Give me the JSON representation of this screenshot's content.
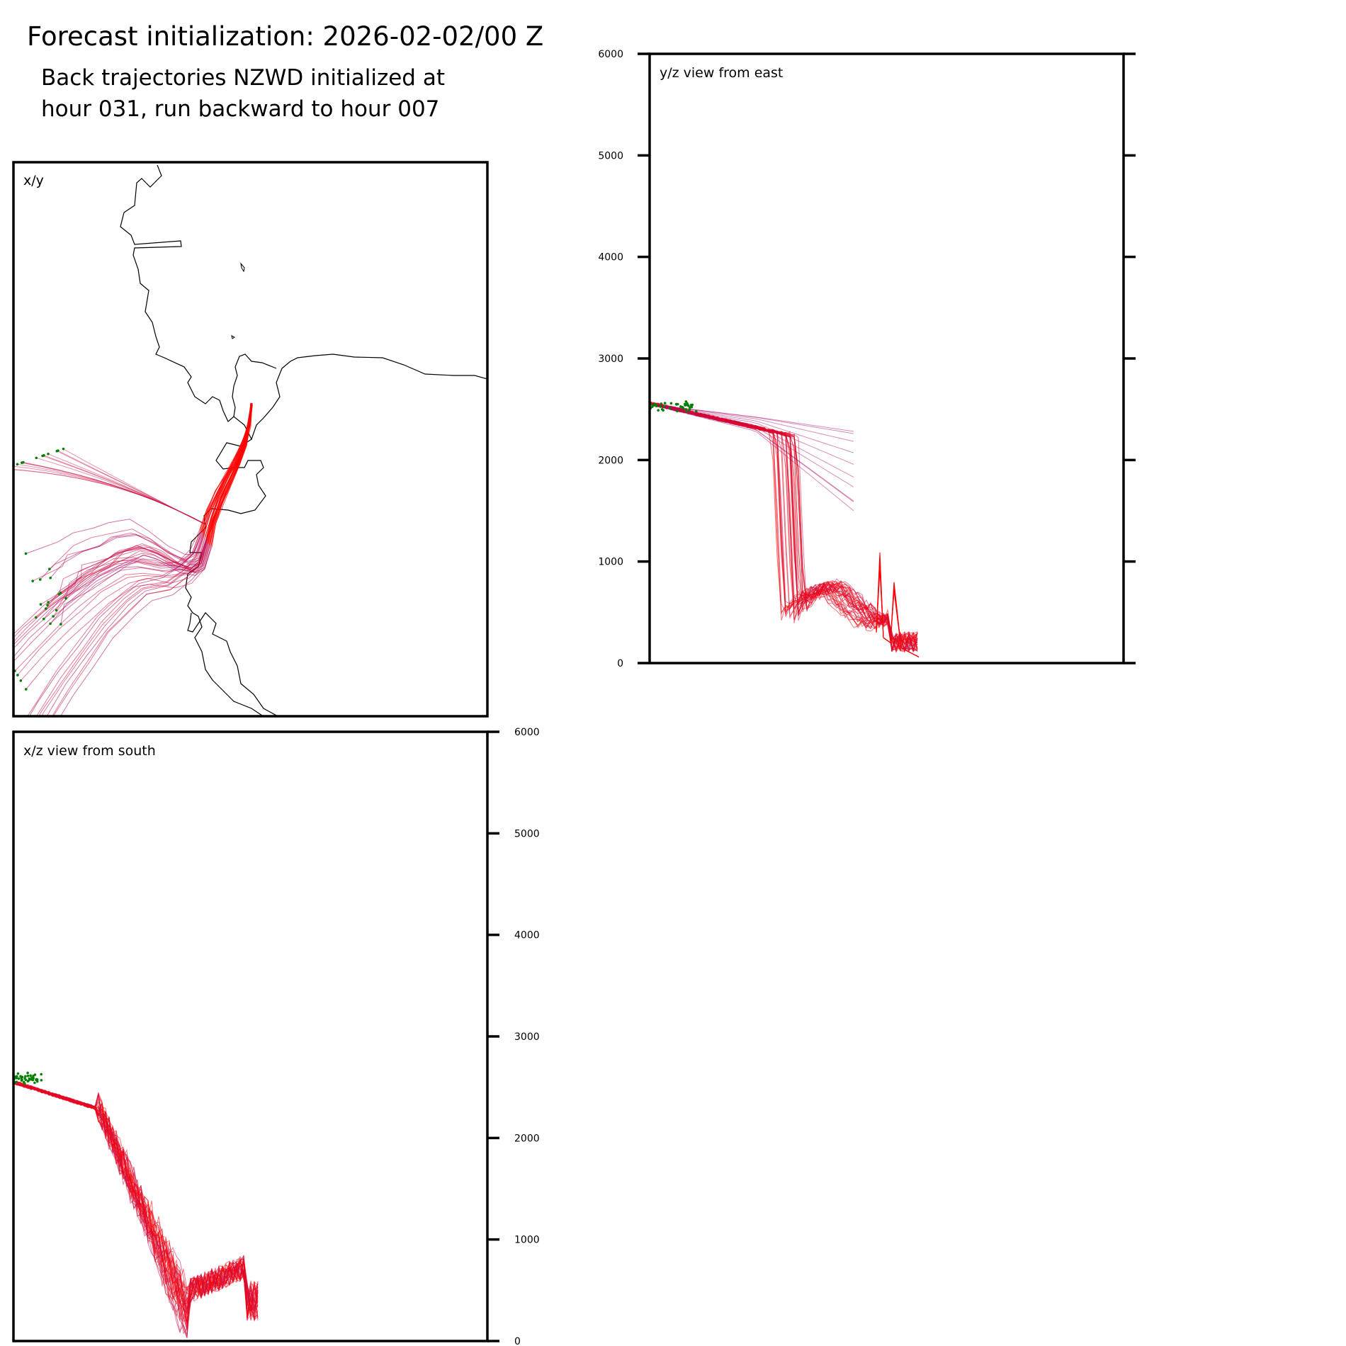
{
  "header": {
    "title": "Forecast initialization: 2026-02-02/00 Z",
    "subtitle_line1": "Back trajectories NZWD initialized at",
    "subtitle_line2": "hour 031, run backward to hour 007"
  },
  "chart_data": [
    {
      "type": "line",
      "panel": "x/y",
      "label": "x/y",
      "description_series": [
        {
          "name": "late segment (hour 031 side)",
          "color": "#ff0000"
        },
        {
          "name": "early segment (hour 007 side)",
          "color": "#aa0066"
        }
      ]
    },
    {
      "type": "line",
      "panel": "y/z",
      "label": "y/z view from east",
      "ylim": [
        0,
        6000
      ],
      "yticks": [
        "0",
        "1000",
        "2000",
        "3000",
        "4000",
        "5000",
        "6000"
      ]
    },
    {
      "type": "line",
      "panel": "x/z",
      "label": "x/z view from south",
      "ylim": [
        0,
        6000
      ],
      "yticks": [
        "0",
        "1000",
        "2000",
        "3000",
        "4000",
        "5000",
        "6000"
      ]
    }
  ],
  "colors": {
    "trajectory_late": "#ff0000",
    "trajectory_mid": "#cc1144",
    "trajectory_early": "#aa0066",
    "start_marker": "#008000",
    "coastline": "#000000"
  }
}
